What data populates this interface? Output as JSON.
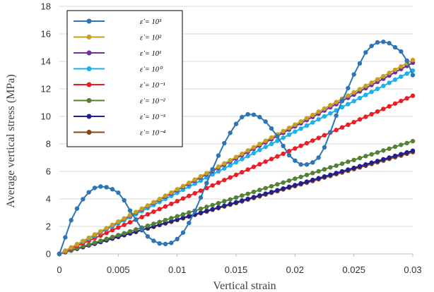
{
  "chart_data": {
    "type": "line",
    "xlabel": "Vertical strain",
    "ylabel": "Average vertical stress (MPa)",
    "xlim": [
      0,
      0.03
    ],
    "ylim": [
      0,
      18
    ],
    "x_ticks": [
      "0",
      "0.005",
      "0.01",
      "0.015",
      "0.02",
      "0.025",
      "0.03"
    ],
    "y_ticks": [
      "0",
      "2",
      "4",
      "6",
      "8",
      "10",
      "12",
      "14",
      "16",
      "18"
    ],
    "grid": "horizontal",
    "legend_position": "top-left",
    "x_step": 0.0005,
    "series": [
      {
        "name": "ε̇ = 10³",
        "color": "#2e75b6",
        "values": [
          0,
          1.2,
          2.45,
          3.3,
          3.98,
          4.48,
          4.8,
          4.9,
          4.85,
          4.7,
          4.45,
          3.9,
          3.15,
          2.5,
          1.78,
          1.27,
          0.95,
          0.76,
          0.72,
          0.8,
          1.08,
          1.55,
          2.25,
          3.1,
          4.1,
          5.15,
          6.15,
          7.15,
          8.05,
          8.8,
          9.45,
          9.95,
          10.15,
          10.12,
          9.95,
          9.62,
          9.12,
          8.55,
          7.85,
          7.18,
          6.78,
          6.5,
          6.5,
          6.65,
          7.0,
          7.75,
          8.85,
          10.05,
          11.15,
          12.05,
          13.05,
          13.85,
          14.65,
          15.12,
          15.38,
          15.42,
          15.32,
          15.02,
          14.72,
          14.05,
          13.0
        ]
      },
      {
        "name": "ε̇ = 10²",
        "color": "#c8a020",
        "values": [
          0,
          0.23,
          0.47,
          0.7,
          0.94,
          1.17,
          1.41,
          1.64,
          1.88,
          2.11,
          2.35,
          2.58,
          2.82,
          3.05,
          3.29,
          3.52,
          3.76,
          3.99,
          4.23,
          4.46,
          4.7,
          4.93,
          5.17,
          5.4,
          5.64,
          5.87,
          6.11,
          6.34,
          6.58,
          6.81,
          7.05,
          7.28,
          7.52,
          7.75,
          7.99,
          8.22,
          8.46,
          8.69,
          8.93,
          9.16,
          9.4,
          9.63,
          9.87,
          10.1,
          10.34,
          10.57,
          10.81,
          11.04,
          11.28,
          11.51,
          11.75,
          11.98,
          12.22,
          12.45,
          12.69,
          12.92,
          13.16,
          13.39,
          13.63,
          13.86,
          14.1
        ]
      },
      {
        "name": "ε̇ = 10¹",
        "color": "#7030a0",
        "values": [
          0,
          0.23,
          0.46,
          0.7,
          0.93,
          1.16,
          1.39,
          1.62,
          1.85,
          2.09,
          2.32,
          2.55,
          2.78,
          3.01,
          3.24,
          3.48,
          3.71,
          3.94,
          4.17,
          4.4,
          4.63,
          4.87,
          5.1,
          5.33,
          5.56,
          5.79,
          6.02,
          6.26,
          6.49,
          6.72,
          6.95,
          7.18,
          7.41,
          7.65,
          7.88,
          8.11,
          8.34,
          8.57,
          8.8,
          9.04,
          9.27,
          9.5,
          9.73,
          9.96,
          10.19,
          10.43,
          10.66,
          10.89,
          11.12,
          11.35,
          11.58,
          11.82,
          12.05,
          12.28,
          12.51,
          12.74,
          12.97,
          13.21,
          13.44,
          13.67,
          13.9
        ]
      },
      {
        "name": "ε̇ = 10⁰",
        "color": "#1ab2e8",
        "values": [
          0,
          0.22,
          0.44,
          0.67,
          0.89,
          1.11,
          1.33,
          1.56,
          1.78,
          2.0,
          2.22,
          2.44,
          2.67,
          2.89,
          3.11,
          3.33,
          3.56,
          3.78,
          4.0,
          4.22,
          4.44,
          4.67,
          4.89,
          5.11,
          5.33,
          5.56,
          5.78,
          6.0,
          6.22,
          6.44,
          6.67,
          6.89,
          7.11,
          7.33,
          7.56,
          7.78,
          8.0,
          8.22,
          8.44,
          8.67,
          8.89,
          9.11,
          9.33,
          9.56,
          9.78,
          10.0,
          10.22,
          10.44,
          10.67,
          10.89,
          11.11,
          11.33,
          11.56,
          11.78,
          12.0,
          12.22,
          12.44,
          12.67,
          12.89,
          13.11,
          13.33
        ]
      },
      {
        "name": "ε̇ = 10⁻¹",
        "color": "#ee1c25",
        "values": [
          0,
          0.19,
          0.38,
          0.58,
          0.77,
          0.96,
          1.15,
          1.34,
          1.53,
          1.73,
          1.92,
          2.11,
          2.3,
          2.49,
          2.68,
          2.88,
          3.07,
          3.26,
          3.45,
          3.64,
          3.83,
          4.03,
          4.22,
          4.41,
          4.6,
          4.79,
          4.98,
          5.18,
          5.37,
          5.56,
          5.75,
          5.94,
          6.13,
          6.33,
          6.52,
          6.71,
          6.9,
          7.09,
          7.28,
          7.48,
          7.67,
          7.86,
          8.05,
          8.24,
          8.43,
          8.63,
          8.82,
          9.01,
          9.2,
          9.39,
          9.58,
          9.78,
          9.97,
          10.16,
          10.35,
          10.54,
          10.73,
          10.93,
          11.12,
          11.31,
          11.5
        ]
      },
      {
        "name": "ε̇ = 10⁻²",
        "color": "#548235",
        "values": [
          0,
          0.14,
          0.27,
          0.41,
          0.55,
          0.68,
          0.82,
          0.96,
          1.09,
          1.23,
          1.37,
          1.5,
          1.64,
          1.78,
          1.91,
          2.05,
          2.19,
          2.32,
          2.46,
          2.6,
          2.73,
          2.87,
          3.01,
          3.14,
          3.28,
          3.42,
          3.55,
          3.69,
          3.83,
          3.96,
          4.1,
          4.24,
          4.37,
          4.51,
          4.65,
          4.78,
          4.92,
          5.06,
          5.19,
          5.33,
          5.47,
          5.6,
          5.74,
          5.88,
          6.01,
          6.15,
          6.29,
          6.42,
          6.56,
          6.7,
          6.83,
          6.97,
          7.11,
          7.24,
          7.38,
          7.52,
          7.65,
          7.79,
          7.93,
          8.06,
          8.2
        ]
      },
      {
        "name": "ε̇ = 10⁻³",
        "color": "#1f1f8f",
        "values": [
          0,
          0.13,
          0.25,
          0.38,
          0.5,
          0.63,
          0.75,
          0.88,
          1.0,
          1.13,
          1.25,
          1.38,
          1.5,
          1.63,
          1.75,
          1.88,
          2.0,
          2.13,
          2.25,
          2.38,
          2.5,
          2.63,
          2.75,
          2.88,
          3.0,
          3.13,
          3.25,
          3.38,
          3.5,
          3.63,
          3.75,
          3.88,
          4.0,
          4.13,
          4.25,
          4.38,
          4.5,
          4.63,
          4.75,
          4.88,
          5.0,
          5.13,
          5.25,
          5.38,
          5.5,
          5.63,
          5.75,
          5.88,
          6.0,
          6.13,
          6.25,
          6.38,
          6.5,
          6.63,
          6.75,
          6.88,
          7.0,
          7.13,
          7.25,
          7.38,
          7.5
        ]
      },
      {
        "name": "ε̇ = 10⁻⁴",
        "color": "#8b4513",
        "values": [
          0,
          0.12,
          0.25,
          0.37,
          0.49,
          0.62,
          0.74,
          0.86,
          0.99,
          1.11,
          1.23,
          1.36,
          1.48,
          1.6,
          1.73,
          1.85,
          1.97,
          2.1,
          2.22,
          2.34,
          2.47,
          2.59,
          2.71,
          2.84,
          2.96,
          3.08,
          3.21,
          3.33,
          3.45,
          3.58,
          3.7,
          3.82,
          3.95,
          4.07,
          4.19,
          4.32,
          4.44,
          4.56,
          4.69,
          4.81,
          4.93,
          5.06,
          5.18,
          5.3,
          5.43,
          5.55,
          5.67,
          5.8,
          5.92,
          6.04,
          6.17,
          6.29,
          6.41,
          6.54,
          6.66,
          6.78,
          6.91,
          7.03,
          7.15,
          7.28,
          7.4
        ]
      }
    ]
  }
}
